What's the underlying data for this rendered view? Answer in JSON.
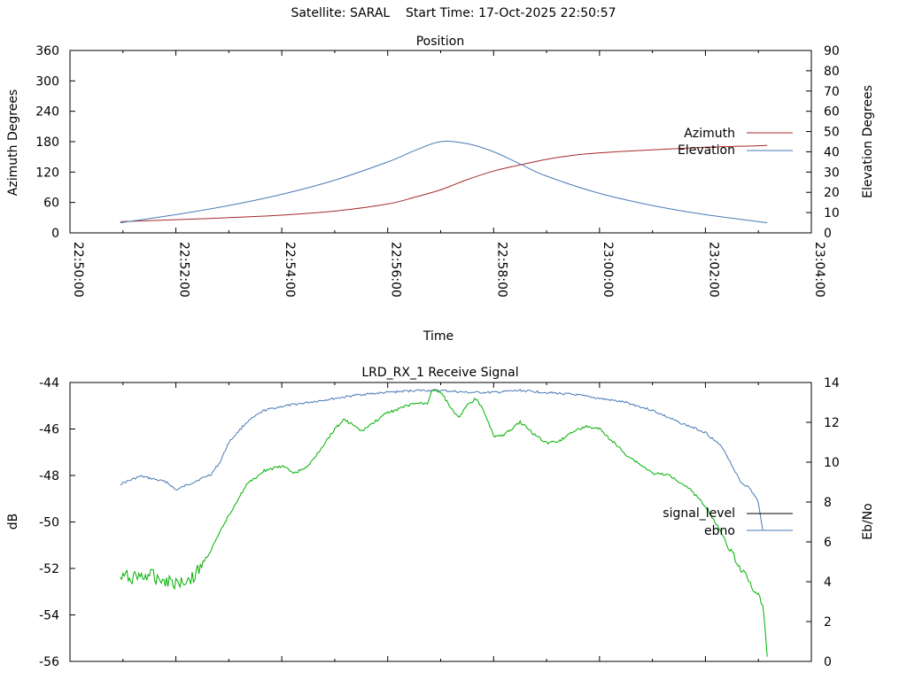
{
  "header": {
    "title": "Satellite: SARAL    Start Time: 17-Oct-2025 22:50:57"
  },
  "colors": {
    "azimuth": "#a52a2a",
    "elevation": "#4a7ab5",
    "signal_level": "#00b000",
    "ebno": "#4a7ab5",
    "legend_signal_level": "#000000"
  },
  "chart_data": [
    {
      "type": "line",
      "title": "Position",
      "xlabel": "Time",
      "ylabel": "Azimuth Degrees",
      "y2label": "Elevation Degrees",
      "xlim": [
        "22:50:00",
        "23:04:00"
      ],
      "ylim": [
        0,
        360
      ],
      "y2lim": [
        0,
        90
      ],
      "x_ticks": [
        "22:50:00",
        "22:52:00",
        "22:54:00",
        "22:56:00",
        "22:58:00",
        "23:00:00",
        "23:02:00",
        "23:04:00"
      ],
      "y_ticks": [
        "0",
        "60",
        "120",
        "180",
        "240",
        "300",
        "360"
      ],
      "y2_ticks": [
        "0",
        "10",
        "20",
        "30",
        "40",
        "50",
        "60",
        "70",
        "80",
        "90"
      ],
      "grid": false,
      "legend_position": "right",
      "series": [
        {
          "name": "Azimuth",
          "axis": "left",
          "x": [
            "22:50:57",
            "22:52:00",
            "22:53:00",
            "22:54:00",
            "22:55:00",
            "22:56:00",
            "22:56:30",
            "22:57:00",
            "22:57:30",
            "22:58:00",
            "22:58:30",
            "22:59:00",
            "22:59:30",
            "23:00:00",
            "23:01:00",
            "23:02:00",
            "23:03:00",
            "23:03:10"
          ],
          "values": [
            22,
            26,
            30,
            35,
            43,
            57,
            70,
            85,
            105,
            122,
            134,
            145,
            153,
            158,
            164,
            169,
            172,
            173
          ]
        },
        {
          "name": "Elevation",
          "axis": "right",
          "x": [
            "22:50:57",
            "22:52:00",
            "22:53:00",
            "22:54:00",
            "22:55:00",
            "22:56:00",
            "22:56:30",
            "22:57:00",
            "22:57:30",
            "22:58:00",
            "22:58:30",
            "22:59:00",
            "23:00:00",
            "23:01:00",
            "23:02:00",
            "23:03:10"
          ],
          "values": [
            5,
            9,
            13.5,
            19,
            26,
            35,
            40.5,
            45,
            44,
            40,
            34,
            28,
            19.5,
            13.5,
            9,
            5
          ]
        }
      ]
    },
    {
      "type": "line",
      "title": "LRD_RX_1 Receive Signal",
      "xlabel": "",
      "ylabel": "dB",
      "y2label": "Eb/No",
      "xlim": [
        "22:50:00",
        "23:04:00"
      ],
      "ylim": [
        -56,
        -44
      ],
      "y2lim": [
        0,
        14
      ],
      "y_ticks": [
        "-56",
        "-54",
        "-52",
        "-50",
        "-48",
        "-46",
        "-44"
      ],
      "y2_ticks": [
        "0",
        "2",
        "4",
        "6",
        "8",
        "10",
        "12",
        "14"
      ],
      "grid": false,
      "legend_position": "right",
      "series": [
        {
          "name": "signal_level",
          "axis": "left",
          "x": [
            "22:50:57",
            "22:51:30",
            "22:52:00",
            "22:52:20",
            "22:52:40",
            "22:53:00",
            "22:53:20",
            "22:53:40",
            "22:54:00",
            "22:54:15",
            "22:54:30",
            "22:54:45",
            "22:55:00",
            "22:55:10",
            "22:55:20",
            "22:55:30",
            "22:55:45",
            "22:56:00",
            "22:56:15",
            "22:56:30",
            "22:56:45",
            "22:56:50",
            "22:57:00",
            "22:57:10",
            "22:57:20",
            "22:57:30",
            "22:57:40",
            "22:57:50",
            "22:58:00",
            "22:58:10",
            "22:58:30",
            "22:58:45",
            "22:59:00",
            "22:59:15",
            "22:59:30",
            "22:59:45",
            "23:00:00",
            "23:00:30",
            "23:01:00",
            "23:01:20",
            "23:01:40",
            "23:02:00",
            "23:02:20",
            "23:02:40",
            "23:03:00",
            "23:03:05",
            "23:03:10"
          ],
          "values": [
            -52.4,
            -52.3,
            -52.6,
            -52.4,
            -51.2,
            -49.7,
            -48.4,
            -47.8,
            -47.6,
            -47.9,
            -47.6,
            -46.8,
            -46.0,
            -45.6,
            -45.8,
            -46.1,
            -45.7,
            -45.3,
            -45.1,
            -44.9,
            -44.9,
            -44.3,
            -44.4,
            -45.0,
            -45.5,
            -45.0,
            -44.7,
            -45.3,
            -46.3,
            -46.3,
            -45.7,
            -46.2,
            -46.6,
            -46.5,
            -46.1,
            -45.9,
            -46.0,
            -47.1,
            -47.9,
            -48.0,
            -48.5,
            -49.3,
            -50.6,
            -52.0,
            -53.2,
            -53.6,
            -55.8
          ]
        },
        {
          "name": "ebno",
          "axis": "right",
          "x": [
            "22:50:57",
            "22:51:20",
            "22:51:50",
            "22:52:00",
            "22:52:20",
            "22:52:40",
            "22:52:50",
            "22:53:00",
            "22:53:20",
            "22:53:40",
            "22:54:00",
            "22:54:30",
            "22:55:00",
            "22:55:30",
            "22:56:00",
            "22:56:30",
            "22:57:00",
            "22:57:30",
            "22:58:00",
            "22:58:30",
            "22:59:00",
            "22:59:30",
            "23:00:00",
            "23:00:30",
            "23:01:00",
            "23:01:30",
            "23:02:00",
            "23:02:20",
            "23:02:40",
            "23:02:50",
            "23:03:00",
            "23:03:05"
          ],
          "values": [
            8.9,
            9.3,
            9.0,
            8.6,
            9.0,
            9.4,
            10.0,
            11.0,
            12.0,
            12.6,
            12.8,
            13.0,
            13.2,
            13.4,
            13.5,
            13.6,
            13.6,
            13.5,
            13.5,
            13.6,
            13.5,
            13.4,
            13.2,
            13.0,
            12.6,
            12.0,
            11.5,
            10.7,
            9.0,
            8.7,
            8.0,
            6.6
          ]
        }
      ]
    }
  ]
}
